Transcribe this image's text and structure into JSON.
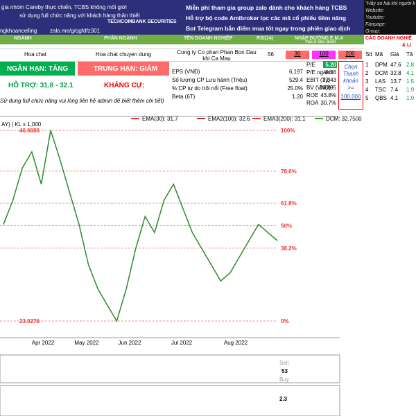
{
  "banner": {
    "left_lines": [
      "gia nhóm Careby thực chiến, TCBS không mối giới",
      "sử dụng full chức năng với khách hàng thân thiết"
    ],
    "brand": "TECHCOMBANK SECURITIES",
    "handle": "ngkhoancelling",
    "zalo": "zalo.me/g/qgfdfz301",
    "bullets": [
      "Miễn phí tham gia group zalo dành cho khách hàng TCBS",
      "Hỗ trợ bộ code Amibroker lọc các mã cổ phiếu tiềm năng",
      "Bot Telegram bắn điểm mua tốt ngay trong phiên giao dịch"
    ],
    "right_lines": [
      "\"Hãy so hải khi người k",
      "Website:",
      "Youtube:",
      "Fanpage:",
      "Group:"
    ]
  },
  "headers": [
    "NGÀNH",
    "PHÂN NGÀNH",
    "TÊN DOANH NGHIỆP",
    "RSI(14)",
    "NHẬP ĐƯỜNG E.M.A",
    "Vào ô bên dưới"
  ],
  "company": {
    "industry": "Hoa chat",
    "sub_industry": "Hoa chat chuyen dung",
    "name": "Cong ty Co phan Phan Bon Dau khi Ca Mau",
    "rsi": "56"
  },
  "ema_inputs": [
    "30",
    "100",
    "200"
  ],
  "trend": {
    "short": "NGẮN HẠN: TĂNG",
    "mid": "TRUNG HẠN: GIẢM"
  },
  "levels": {
    "support": "HỖ TRỢ: 31.8 - 32.1",
    "resistance": "KHÁNG CỰ:"
  },
  "note": "Sử dụng full chức năng vui lòng liên hệ admin để biết thêm chi tiết)",
  "fundamentals_left": [
    {
      "label": "EPS (VNĐ)",
      "value": "6,197"
    },
    {
      "label": "Số lượng CP Lưu hành (Triệu)",
      "value": "529.4"
    },
    {
      "label": "% CP tự do trôi nổi (Free float)",
      "value": "25.0%"
    },
    {
      "label": "Beta (6T)",
      "value": "1.20"
    }
  ],
  "fundamentals_right": [
    {
      "label": "P/E",
      "value": "5.20"
    },
    {
      "label": "P/E ngành",
      "value": "9.36"
    },
    {
      "label": "EBIT (Tỷ)",
      "value": "3,343"
    },
    {
      "label": "BV (VNĐ)",
      "value": "16,895"
    },
    {
      "label": "ROE",
      "value": "43.8%"
    },
    {
      "label": "ROA",
      "value": "30.7%"
    }
  ],
  "liquidity": {
    "lines": [
      "Chọn",
      "Thanh",
      "khoản",
      ">="
    ],
    "value": "100,000"
  },
  "peers": {
    "title": "CÁC DOANH NGHIỆ",
    "subtitle": "& LI",
    "header": [
      "Stt",
      "Mã",
      "Giá",
      "Tă"
    ],
    "rows": [
      [
        "1",
        "DPM",
        "47.6",
        "2.8"
      ],
      [
        "2",
        "DCM",
        "32.8",
        "4.1"
      ],
      [
        "3",
        "LAS",
        "13.7",
        "1.5"
      ],
      [
        "4",
        "TSC",
        "7.4",
        "1.9"
      ],
      [
        "5",
        "QBS",
        "4.1",
        "1.0"
      ]
    ]
  },
  "chart": {
    "volume_label": "AY) | KL x 1,000",
    "legend": [
      "EMA(30): 31.7",
      "EMA2(100): 32.6",
      "EMA3(200): 31.1",
      "DCM: 32.7500"
    ],
    "high": 46.6686,
    "low": 23.0276,
    "fib": [
      {
        "value": 100,
        "label": "100%"
      },
      {
        "value": 78.6,
        "label": "78.6%"
      },
      {
        "value": 61.8,
        "label": "61.8%"
      },
      {
        "value": 50,
        "label": "50%"
      },
      {
        "value": 38.2,
        "label": "38.2%"
      },
      {
        "value": 0,
        "label": "0%"
      }
    ],
    "months": [
      "Apr 2022",
      "May 2022",
      "Jun 2022",
      "Jul 2022",
      "Aug 2022"
    ],
    "price": [
      35,
      38,
      42,
      44,
      40,
      46.6686,
      43,
      39,
      35,
      30,
      27,
      25,
      23.0276,
      27,
      32,
      36,
      34,
      38,
      40,
      37,
      34,
      32,
      30,
      28,
      29,
      31,
      33,
      35,
      34,
      33
    ],
    "indicator": {
      "sell": "Sell",
      "value": "53",
      "buy": "Buy",
      "macd": "2.3"
    }
  }
}
